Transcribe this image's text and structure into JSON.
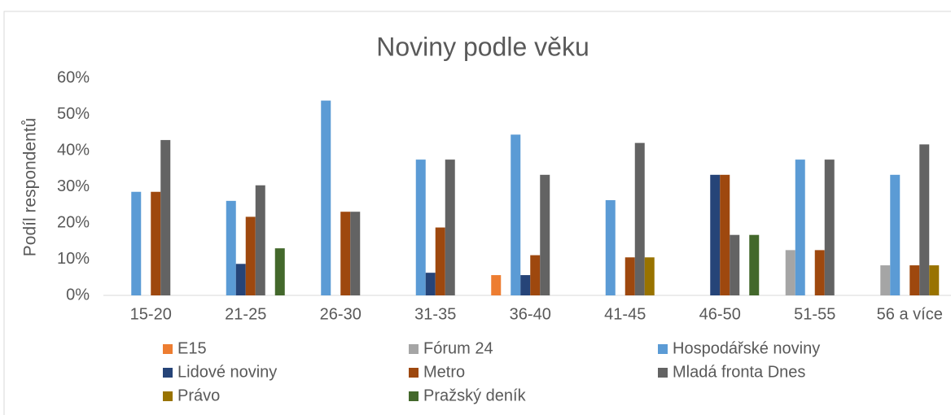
{
  "chart_data": {
    "type": "bar",
    "title": "Noviny podle věku",
    "y_label": "Podíl respondentů",
    "categories": [
      "15-20",
      "21-25",
      "26-30",
      "31-35",
      "36-40",
      "41-45",
      "46-50",
      "51-55",
      "56 a více"
    ],
    "series": [
      {
        "name": "E15",
        "color": "#ed7d31",
        "values": [
          null,
          null,
          null,
          null,
          5.6,
          null,
          null,
          null,
          null
        ]
      },
      {
        "name": "Fórum 24",
        "color": "#a5a5a5",
        "values": [
          null,
          null,
          null,
          null,
          null,
          null,
          null,
          12.5,
          8.3
        ]
      },
      {
        "name": "Hospodářské noviny",
        "color": "#5b9bd5",
        "values": [
          28.6,
          26.1,
          53.8,
          37.5,
          44.4,
          26.3,
          null,
          37.5,
          33.3
        ]
      },
      {
        "name": "Lidové noviny",
        "color": "#264478",
        "values": [
          null,
          8.7,
          null,
          6.25,
          5.6,
          null,
          33.3,
          null,
          null
        ]
      },
      {
        "name": "Metro",
        "color": "#9e480e",
        "values": [
          28.6,
          21.7,
          23.1,
          18.75,
          11.1,
          10.5,
          33.3,
          12.5,
          8.3
        ]
      },
      {
        "name": "Mladá fronta Dnes",
        "color": "#636363",
        "values": [
          42.9,
          30.4,
          23.1,
          37.5,
          33.3,
          42.1,
          16.7,
          37.5,
          41.7
        ]
      },
      {
        "name": "Právo",
        "color": "#997300",
        "values": [
          null,
          null,
          null,
          null,
          null,
          10.5,
          null,
          null,
          8.3
        ]
      },
      {
        "name": "Pražský deník",
        "color": "#43682b",
        "values": [
          null,
          13.0,
          null,
          null,
          null,
          null,
          16.7,
          null,
          null
        ]
      }
    ],
    "ylim": [
      0,
      60
    ],
    "yticks": [
      {
        "value": 0,
        "label": "0%"
      },
      {
        "value": 10,
        "label": "10%"
      },
      {
        "value": 20,
        "label": "20%"
      },
      {
        "value": 30,
        "label": "30%"
      },
      {
        "value": 40,
        "label": "40%"
      },
      {
        "value": 50,
        "label": "50%"
      },
      {
        "value": 60,
        "label": "60%"
      }
    ],
    "grid": false,
    "legend": "bottom"
  }
}
